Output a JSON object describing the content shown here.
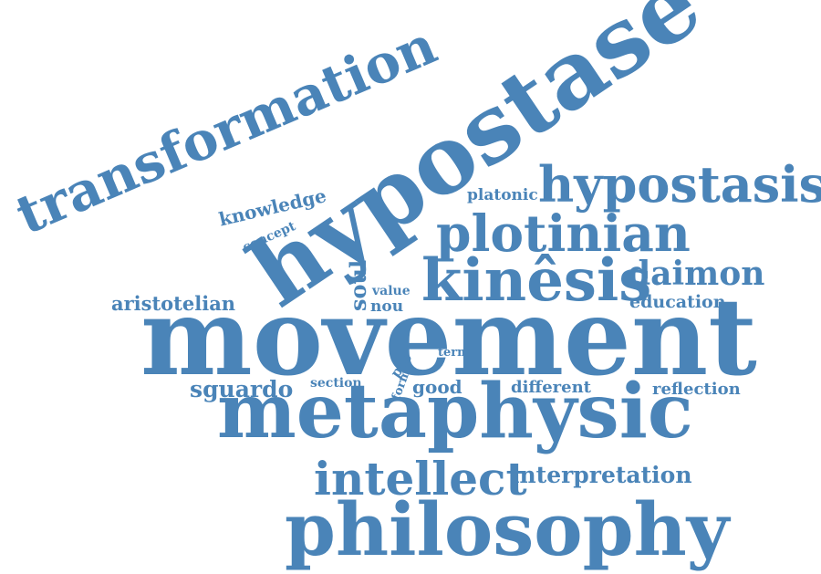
{
  "colors": {
    "word": "#4a84b8",
    "background": "#ffffff"
  },
  "words": [
    "transformation",
    "hypostase",
    "hypostasis",
    "platonic",
    "knowledge",
    "concept",
    "plotinian",
    "kinêsis",
    "daimon",
    "soul",
    "value",
    "nou",
    "aristotelian",
    "education",
    "movement",
    "term",
    "pro",
    "form",
    "section",
    "good",
    "different",
    "reflection",
    "sguardo",
    "metaphysic",
    "intellect",
    "interpretation",
    "philosophy"
  ]
}
